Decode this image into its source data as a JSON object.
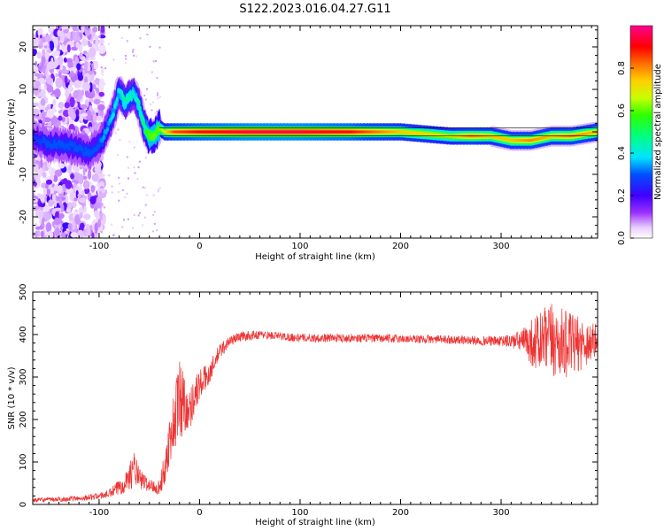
{
  "title": "S122.2023.016.04.27.G11",
  "chart_data": [
    {
      "type": "heatmap",
      "xlabel": "Height of straight line (km)",
      "ylabel": "Frequency (Hz)",
      "xlim": [
        -166,
        396
      ],
      "ylim": [
        -25,
        25
      ],
      "x_ticks": [
        -100,
        0,
        100,
        200,
        300
      ],
      "y_ticks": [
        -20,
        -10,
        0,
        10,
        20
      ],
      "colorbar": {
        "label": "Normalized spectral amplitude",
        "ticks": [
          "0.0",
          "0.2",
          "0.4",
          "0.6",
          "0.8"
        ],
        "tick_values": [
          0.0,
          0.2,
          0.4,
          0.6,
          0.8
        ],
        "range": [
          0,
          1
        ],
        "colormap": "rainbow (white-violet-blue-cyan-green-yellow-red-magenta)"
      },
      "ridge": {
        "x": [
          -166,
          -150,
          -135,
          -120,
          -110,
          -100,
          -95,
          -90,
          -85,
          -80,
          -75,
          -70,
          -65,
          -60,
          -55,
          -50,
          -45,
          -40,
          -35,
          -25,
          0,
          50,
          100,
          150,
          200,
          250,
          270,
          290,
          310,
          330,
          350,
          370,
          396
        ],
        "y": [
          -1,
          -3,
          -3,
          -4,
          -5,
          -3,
          -1,
          2,
          5,
          10,
          7,
          8,
          9,
          6,
          1,
          -1,
          -1,
          1,
          0,
          0,
          0,
          0,
          0,
          0,
          0,
          -1,
          -1,
          -1,
          -2,
          -2,
          -1,
          -1,
          0
        ],
        "amplitude": [
          0.25,
          0.3,
          0.3,
          0.3,
          0.3,
          0.3,
          0.35,
          0.35,
          0.4,
          0.4,
          0.45,
          0.45,
          0.4,
          0.45,
          0.5,
          0.6,
          0.6,
          0.6,
          0.7,
          0.85,
          0.9,
          0.95,
          0.95,
          0.9,
          0.75,
          0.7,
          0.8,
          0.75,
          0.75,
          0.8,
          0.75,
          0.8,
          0.75
        ]
      }
    },
    {
      "type": "line",
      "xlabel": "Height of straight line (km)",
      "ylabel": "SNR (10 * v/v)",
      "xlim": [
        -166,
        396
      ],
      "ylim": [
        0,
        500
      ],
      "x_ticks": [
        -100,
        0,
        100,
        200,
        300
      ],
      "y_ticks": [
        0,
        100,
        200,
        300,
        400,
        500
      ],
      "color": "#ee3333",
      "envelope": {
        "x": [
          -166,
          -140,
          -120,
          -100,
          -90,
          -80,
          -70,
          -65,
          -60,
          -50,
          -40,
          -35,
          -30,
          -25,
          -20,
          -15,
          -10,
          -5,
          0,
          10,
          20,
          30,
          40,
          60,
          100,
          150,
          200,
          250,
          300,
          320,
          335,
          350,
          370,
          396
        ],
        "mean": [
          10,
          12,
          14,
          20,
          25,
          40,
          65,
          85,
          60,
          45,
          40,
          80,
          150,
          200,
          250,
          240,
          220,
          260,
          280,
          310,
          360,
          385,
          395,
          400,
          392,
          392,
          390,
          388,
          384,
          385,
          380,
          385,
          375,
          385
        ],
        "noise": [
          5,
          6,
          6,
          8,
          10,
          20,
          30,
          45,
          25,
          15,
          18,
          40,
          60,
          80,
          110,
          70,
          50,
          45,
          40,
          25,
          20,
          12,
          12,
          10,
          10,
          10,
          10,
          10,
          12,
          25,
          70,
          90,
          75,
          40
        ]
      }
    }
  ]
}
